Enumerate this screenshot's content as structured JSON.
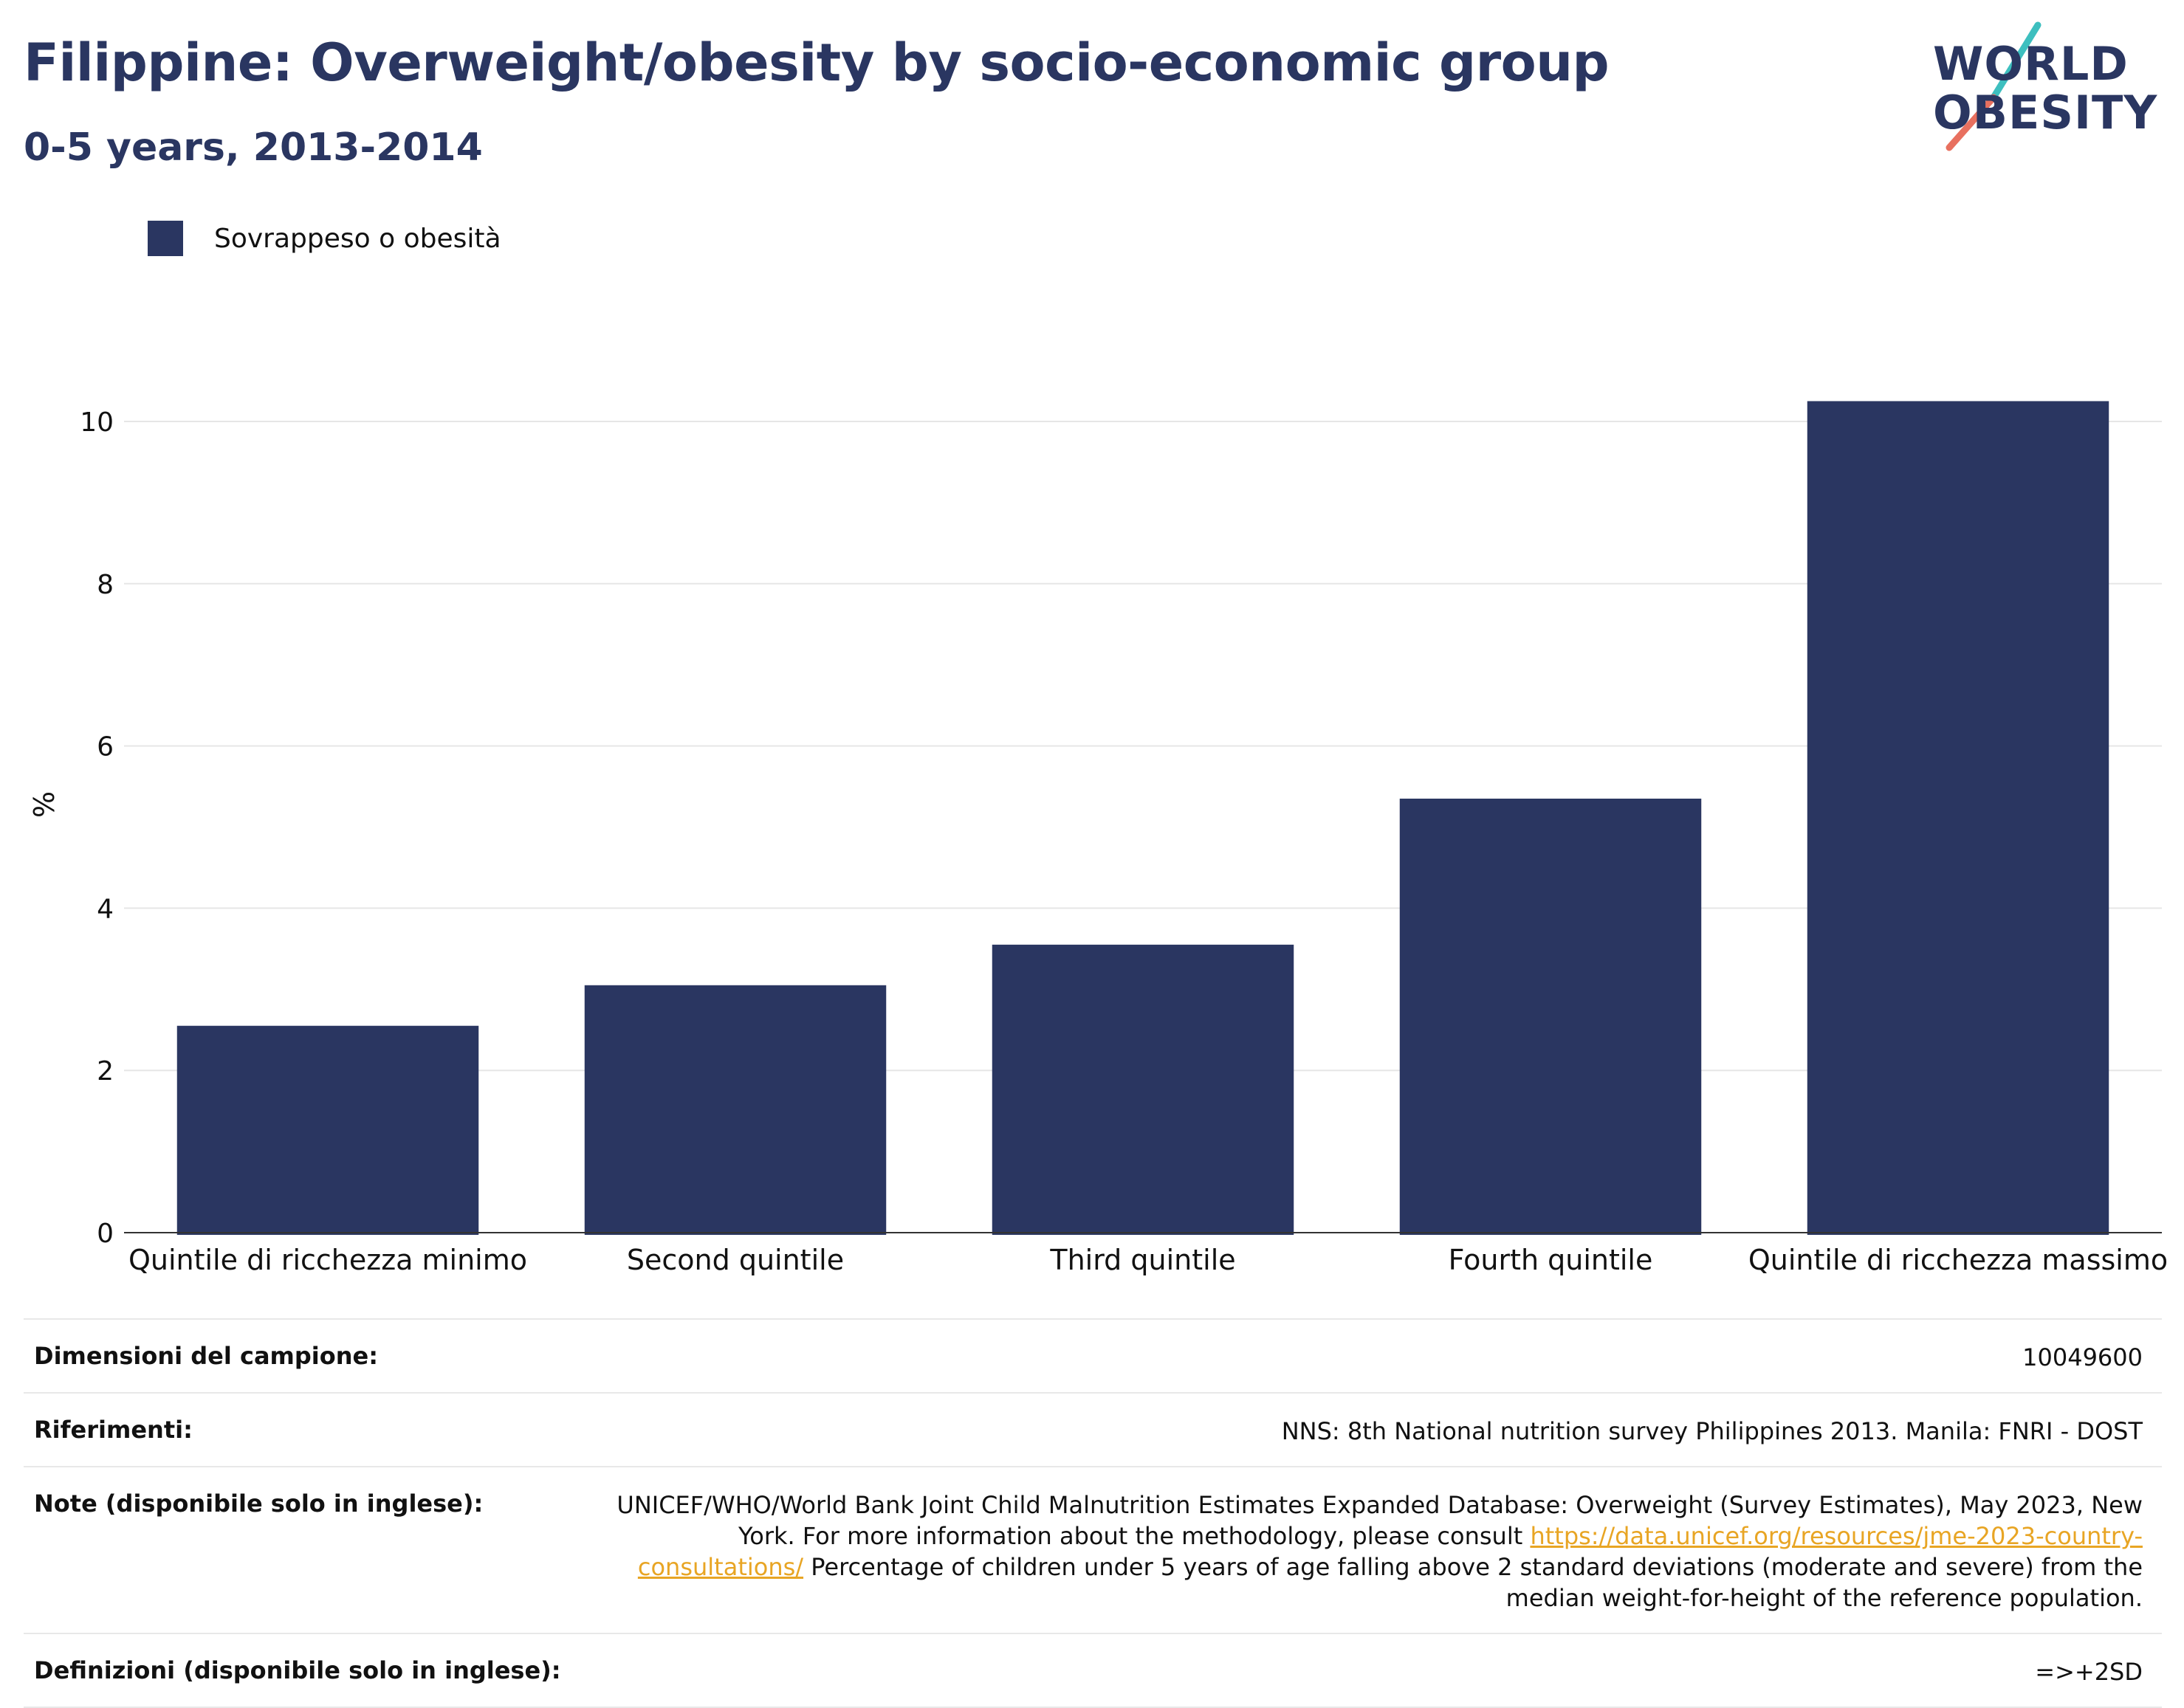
{
  "header": {
    "title": "Filippine: Overweight/obesity by socio-economic group",
    "subtitle": "0-5 years, 2013-2014"
  },
  "logo": {
    "line1": "WORLD",
    "line2": "OBESITY",
    "colors": {
      "text": "#2a3661",
      "slash_teal": "#3dbfbf",
      "slash_coral": "#e8705f"
    }
  },
  "legend": {
    "label": "Sovrappeso o obesità",
    "color": "#2a3661"
  },
  "chart_data": {
    "type": "bar",
    "categories": [
      "Quintile di ricchezza minimo",
      "Second quintile",
      "Third quintile",
      "Fourth quintile",
      "Quintile di ricchezza massimo"
    ],
    "series": [
      {
        "name": "Sovrappeso o obesità",
        "values": [
          2.55,
          3.05,
          3.55,
          5.35,
          10.25
        ],
        "color": "#2a3661"
      }
    ],
    "ylabel": "%",
    "xlabel": "",
    "ylim": [
      0,
      10.6
    ],
    "yticks": [
      0,
      2,
      4,
      6,
      8,
      10
    ],
    "grid": true,
    "legend_position": "top-left"
  },
  "info": {
    "sample_label": "Dimensioni del campione:",
    "sample_value": "10049600",
    "references_label": "Riferimenti:",
    "references_value": "NNS: 8th National nutrition survey Philippines 2013. Manila: FNRI - DOST",
    "notes_label": "Note (disponibile solo in inglese):",
    "notes_text_1": "UNICEF/WHO/World Bank Joint Child Malnutrition Estimates Expanded Database: Overweight (Survey Estimates), May 2023, New York. For more information about the methodology, please consult",
    "notes_link": "https://data.unicef.org/resources/jme-2023-country-consultations/",
    "notes_text_2": "Percentage of children under 5 years of age falling above 2 standard deviations (moderate and severe) from the median weight-for-height of the reference population.",
    "definitions_label": "Definizioni (disponibile solo in inglese):",
    "definitions_value": "=>+2SD"
  }
}
